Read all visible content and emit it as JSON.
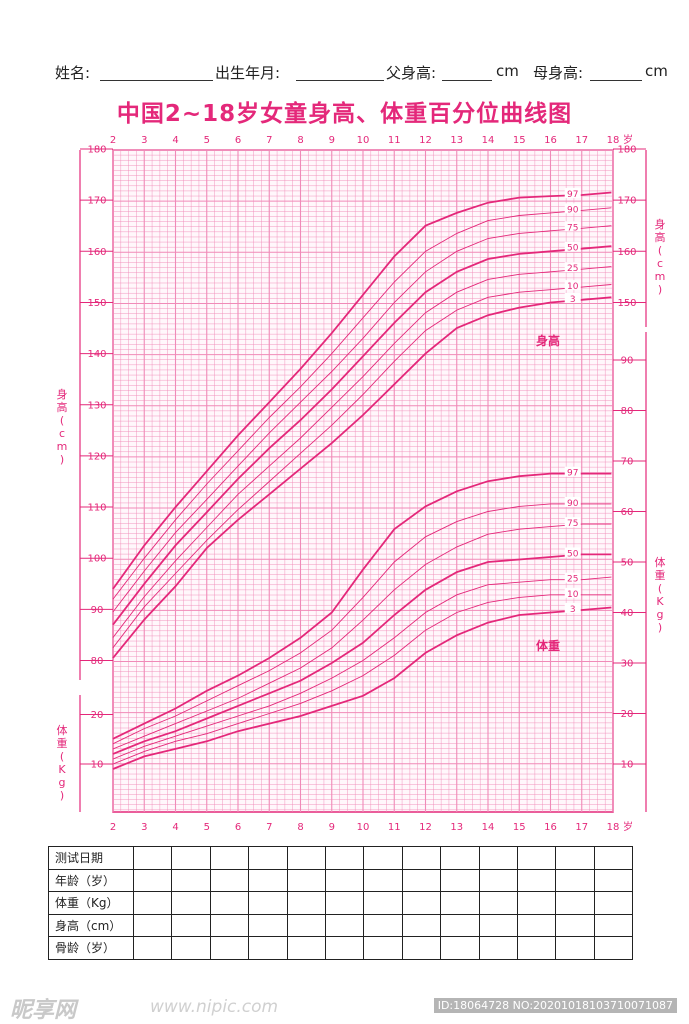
{
  "header": {
    "name_label": "姓名:",
    "birth_label": "出生年月:",
    "father_label": "父身高:",
    "mother_label": "母身高:",
    "unit": "cm"
  },
  "title": "中国2~18岁女童身高、体重百分位曲线图",
  "chart_data": {
    "type": "line",
    "title": "中国2~18岁女童身高、体重百分位曲线图",
    "x_ticks": [
      2,
      3,
      4,
      5,
      6,
      7,
      8,
      9,
      10,
      11,
      12,
      13,
      14,
      15,
      16,
      17,
      18
    ],
    "x_unit": "岁",
    "xlim": [
      2,
      18
    ],
    "height_axis": {
      "label": "身高(cm)",
      "left_ticks": [
        80,
        90,
        100,
        110,
        120,
        130,
        140,
        150,
        160,
        170,
        180
      ],
      "right_ticks": [
        150,
        160,
        170,
        180
      ],
      "ylim": [
        70,
        180
      ]
    },
    "weight_axis": {
      "label": "体重(Kg)",
      "left_ticks": [
        10,
        20
      ],
      "right_ticks": [
        10,
        20,
        30,
        40,
        50,
        60,
        70,
        80,
        90
      ],
      "ylim": [
        0,
        100
      ]
    },
    "annotations": {
      "height": "身高",
      "weight": "体重"
    },
    "percentiles": [
      "97",
      "90",
      "75",
      "50",
      "25",
      "10",
      "3"
    ],
    "height_series": [
      {
        "name": "97",
        "x": [
          2,
          3,
          4,
          5,
          6,
          7,
          8,
          9,
          10,
          11,
          12,
          13,
          14,
          15,
          16,
          17,
          18
        ],
        "values": [
          94,
          102.5,
          110,
          117,
          124,
          130.5,
          137,
          144,
          151.5,
          159,
          165,
          167.5,
          169.5,
          170.5,
          170.8,
          171,
          171.5
        ]
      },
      {
        "name": "90",
        "x": [
          2,
          3,
          4,
          5,
          6,
          7,
          8,
          9,
          10,
          11,
          12,
          13,
          14,
          15,
          16,
          17,
          18
        ],
        "values": [
          92,
          100,
          107.5,
          114.5,
          121,
          127.5,
          133.5,
          140,
          147,
          154,
          160,
          163.5,
          166,
          167,
          167.5,
          168,
          168.5
        ]
      },
      {
        "name": "75",
        "x": [
          2,
          3,
          4,
          5,
          6,
          7,
          8,
          9,
          10,
          11,
          12,
          13,
          14,
          15,
          16,
          17,
          18
        ],
        "values": [
          89.5,
          97.5,
          105,
          111.5,
          118,
          124.5,
          130.5,
          136.5,
          143,
          150,
          156,
          160,
          162.5,
          163.5,
          164,
          164.5,
          165
        ]
      },
      {
        "name": "50",
        "x": [
          2,
          3,
          4,
          5,
          6,
          7,
          8,
          9,
          10,
          11,
          12,
          13,
          14,
          15,
          16,
          17,
          18
        ],
        "values": [
          87,
          95,
          102.5,
          109,
          115.5,
          121.5,
          127,
          133,
          139.5,
          146,
          152,
          156,
          158.5,
          159.5,
          160,
          160.5,
          161
        ]
      },
      {
        "name": "25",
        "x": [
          2,
          3,
          4,
          5,
          6,
          7,
          8,
          9,
          10,
          11,
          12,
          13,
          14,
          15,
          16,
          17,
          18
        ],
        "values": [
          84.5,
          92.5,
          99.5,
          106,
          112.5,
          118,
          123.5,
          129.5,
          135.5,
          142,
          148,
          152,
          154.5,
          155.5,
          156,
          156.5,
          157
        ]
      },
      {
        "name": "10",
        "x": [
          2,
          3,
          4,
          5,
          6,
          7,
          8,
          9,
          10,
          11,
          12,
          13,
          14,
          15,
          16,
          17,
          18
        ],
        "values": [
          82.5,
          90.5,
          97,
          103.5,
          109.5,
          115,
          120.5,
          126,
          132,
          138.5,
          144.5,
          148.5,
          151,
          152,
          152.5,
          153,
          153.5
        ]
      },
      {
        "name": "3",
        "x": [
          2,
          3,
          4,
          5,
          6,
          7,
          8,
          9,
          10,
          11,
          12,
          13,
          14,
          15,
          16,
          17,
          18
        ],
        "values": [
          80.5,
          88,
          94.5,
          102,
          107.5,
          112.5,
          117.5,
          122.5,
          128,
          134,
          140,
          145,
          147.5,
          149,
          150,
          150.5,
          151
        ]
      }
    ],
    "weight_series": [
      {
        "name": "97",
        "x": [
          2,
          3,
          4,
          5,
          6,
          7,
          8,
          9,
          10,
          11,
          12,
          13,
          14,
          15,
          16,
          17,
          18
        ],
        "values": [
          15,
          18,
          21,
          24.5,
          27.5,
          31,
          35,
          40,
          48.5,
          56.5,
          61,
          64,
          66,
          67,
          67.5,
          67.5,
          67.5
        ]
      },
      {
        "name": "90",
        "x": [
          2,
          3,
          4,
          5,
          6,
          7,
          8,
          9,
          10,
          11,
          12,
          13,
          14,
          15,
          16,
          17,
          18
        ],
        "values": [
          14,
          17,
          19.5,
          22.5,
          25.5,
          28.5,
          32,
          36.5,
          43,
          50,
          55,
          58,
          60,
          61,
          61.5,
          61.5,
          61.5
        ]
      },
      {
        "name": "75",
        "x": [
          2,
          3,
          4,
          5,
          6,
          7,
          8,
          9,
          10,
          11,
          12,
          13,
          14,
          15,
          16,
          17,
          18
        ],
        "values": [
          13,
          15.5,
          18,
          20.5,
          23,
          26,
          29,
          33,
          38.5,
          44.5,
          49.5,
          53,
          55.5,
          56.5,
          57,
          57.5,
          57.5
        ]
      },
      {
        "name": "50",
        "x": [
          2,
          3,
          4,
          5,
          6,
          7,
          8,
          9,
          10,
          11,
          12,
          13,
          14,
          15,
          16,
          17,
          18
        ],
        "values": [
          12,
          14.5,
          16.5,
          19,
          21.5,
          24,
          26.5,
          30,
          34,
          39.5,
          44.5,
          48,
          50,
          50.5,
          51,
          51.5,
          51.5
        ]
      },
      {
        "name": "25",
        "x": [
          2,
          3,
          4,
          5,
          6,
          7,
          8,
          9,
          10,
          11,
          12,
          13,
          14,
          15,
          16,
          17,
          18
        ],
        "values": [
          11,
          13.5,
          15.5,
          17.5,
          19.5,
          21.5,
          24,
          27,
          30.5,
          35,
          40,
          43.5,
          45.5,
          46,
          46.5,
          46.5,
          47
        ]
      },
      {
        "name": "10",
        "x": [
          2,
          3,
          4,
          5,
          6,
          7,
          8,
          9,
          10,
          11,
          12,
          13,
          14,
          15,
          16,
          17,
          18
        ],
        "values": [
          10,
          12.5,
          14.5,
          16,
          18,
          20,
          22,
          24.5,
          27.5,
          31.5,
          36.5,
          40,
          42,
          43,
          43.5,
          43.5,
          43.5
        ]
      },
      {
        "name": "3",
        "x": [
          2,
          3,
          4,
          5,
          6,
          7,
          8,
          9,
          10,
          11,
          12,
          13,
          14,
          15,
          16,
          17,
          18
        ],
        "values": [
          9,
          11.5,
          13,
          14.5,
          16.5,
          18,
          19.5,
          21.5,
          23.5,
          27,
          32,
          35.5,
          38,
          39.5,
          40,
          40.5,
          41
        ]
      }
    ],
    "grid": true
  },
  "table": {
    "row_labels": [
      "测试日期",
      "年龄（岁）",
      "体重（Kg）",
      "身高（cm）",
      "骨龄（岁）"
    ],
    "columns": 13
  },
  "footer": {
    "brand": "昵享网",
    "site": "www.nipic.com",
    "id_text": "ID:18064728 NO:20201018103710071087"
  },
  "colors": {
    "accent": "#e4287a",
    "grid": "#f08ab8",
    "line": "#e4287a"
  }
}
